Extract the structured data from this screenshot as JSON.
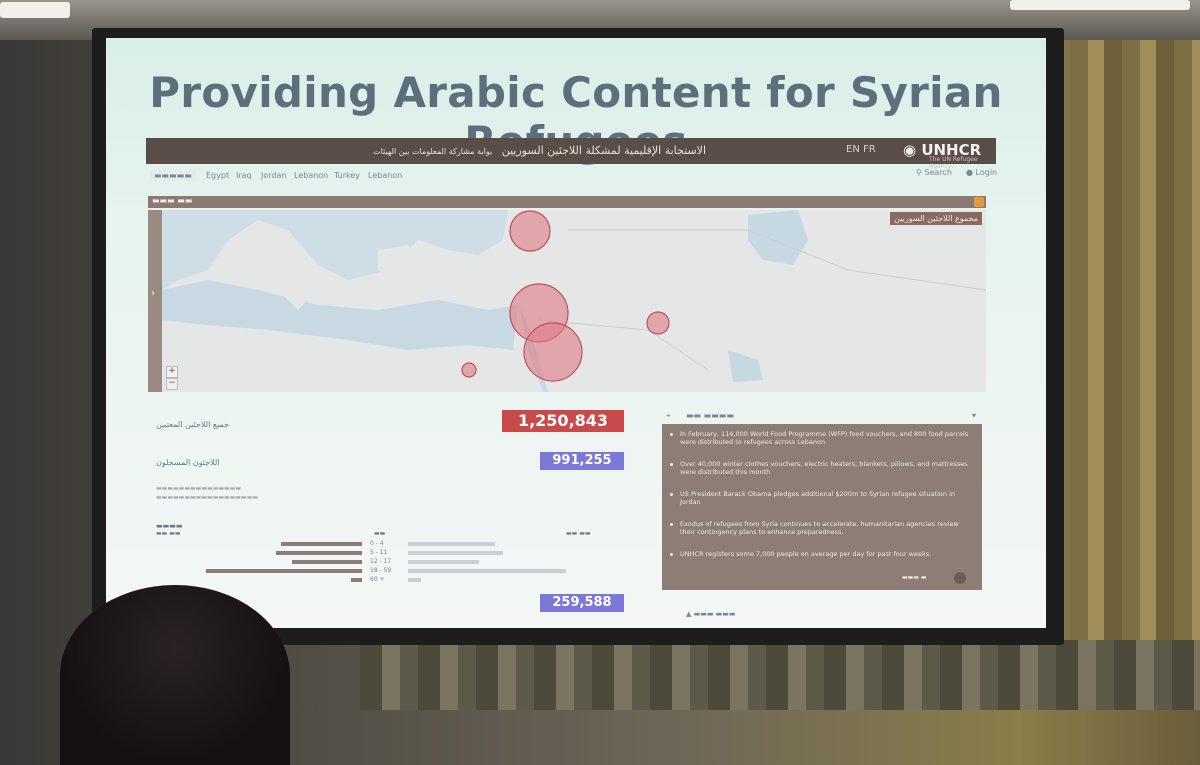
{
  "slide": {
    "title": "Providing Arabic Content for Syrian Refugees"
  },
  "site": {
    "topbar": {
      "arabic_title": "الاستجابة الإقليمية لمشكلة اللاجئين السوريين",
      "arabic_portal": "بوابة مشاركة المعلومات بين الهيئات",
      "languages": "EN  FR",
      "logo": "UNHCR",
      "logo_subtitle": "The UN Refugee Agency"
    },
    "nav": {
      "items": [
        "Egypt",
        "Iraq",
        "Jordan",
        "Lebanon",
        "Turkey",
        "Lebanon"
      ],
      "search": "Search",
      "login": "Login"
    },
    "map": {
      "legend": "مجموع اللاجئين السوريين",
      "zoom_in": "+",
      "zoom_out": "−"
    },
    "stats": {
      "total_label": "جميع اللاجئين المعنيين",
      "total_value": "1,250,843",
      "registered_label": "اللاجئون المسجلون",
      "registered_value": "991,255",
      "awaiting_value": "259,588"
    },
    "colors": {
      "total": "#c94a4a",
      "registered": "#7b78d8",
      "news_bg": "#8e7c76",
      "circle": "#e07a86"
    },
    "age": {
      "rows": [
        {
          "range": "0 - 4",
          "male": 0.52,
          "female": 0.55
        },
        {
          "range": "5 - 11",
          "male": 0.55,
          "female": 0.6
        },
        {
          "range": "12 - 17",
          "male": 0.45,
          "female": 0.45
        },
        {
          "range": "18 - 59",
          "male": 1.0,
          "female": 1.0
        },
        {
          "range": "60 +",
          "male": 0.07,
          "female": 0.08
        }
      ]
    },
    "news": {
      "items": [
        "In February, 114,000 World Food Programme (WFP) food vouchers, and 800 food parcels were distributed to refugees across Lebanon",
        "Over 40,000 winter clothes vouchers, electric heaters, blankets, pillows, and mattresses were distributed this month",
        "US President Barack Obama pledges additional $200m to Syrian refugee situation in Jordan",
        "Exodus of refugees from Syria continues to accelerate, humanitarian agencies review their contingency plans to enhance preparedness.",
        "UNHCR registers some 7,000 people on average per day for past four weeks."
      ]
    }
  }
}
